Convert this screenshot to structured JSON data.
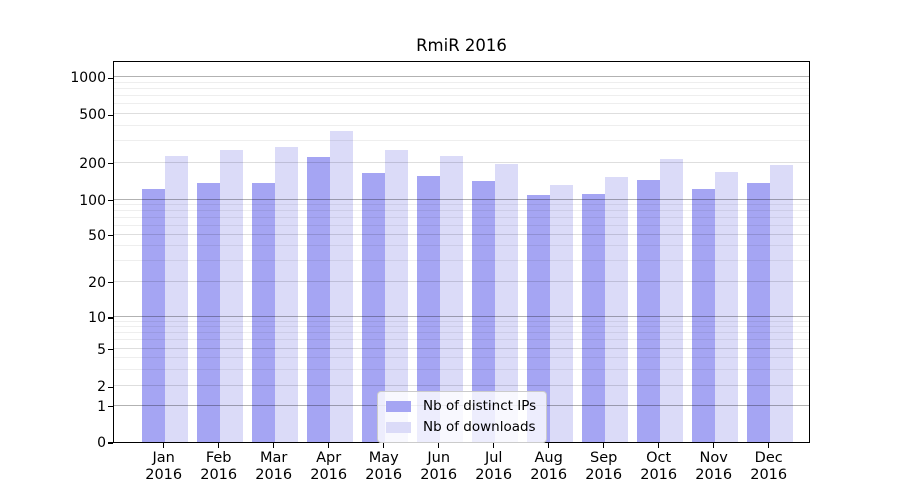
{
  "chart_data": {
    "type": "bar",
    "title": "RmiR 2016",
    "categories": [
      "Jan",
      "Feb",
      "Mar",
      "Apr",
      "May",
      "Jun",
      "Jul",
      "Aug",
      "Sep",
      "Oct",
      "Nov",
      "Dec"
    ],
    "x_year_label": "2016",
    "series": [
      {
        "name": "Nb of distinct IPs",
        "color": "#a5a5f3",
        "values": [
          123,
          136,
          137,
          222,
          165,
          156,
          142,
          108,
          110,
          145,
          123,
          136
        ]
      },
      {
        "name": "Nb of downloads",
        "color": "#dbdbf8",
        "values": [
          226,
          252,
          270,
          365,
          254,
          229,
          197,
          132,
          152,
          215,
          168,
          190
        ]
      }
    ],
    "y_axis": {
      "scale": "symlog",
      "ticks": [
        0,
        1,
        2,
        5,
        10,
        20,
        50,
        100,
        200,
        500,
        1000
      ],
      "ylim": [
        0,
        1380
      ]
    },
    "grid": "on",
    "legend_position": "lower center"
  }
}
